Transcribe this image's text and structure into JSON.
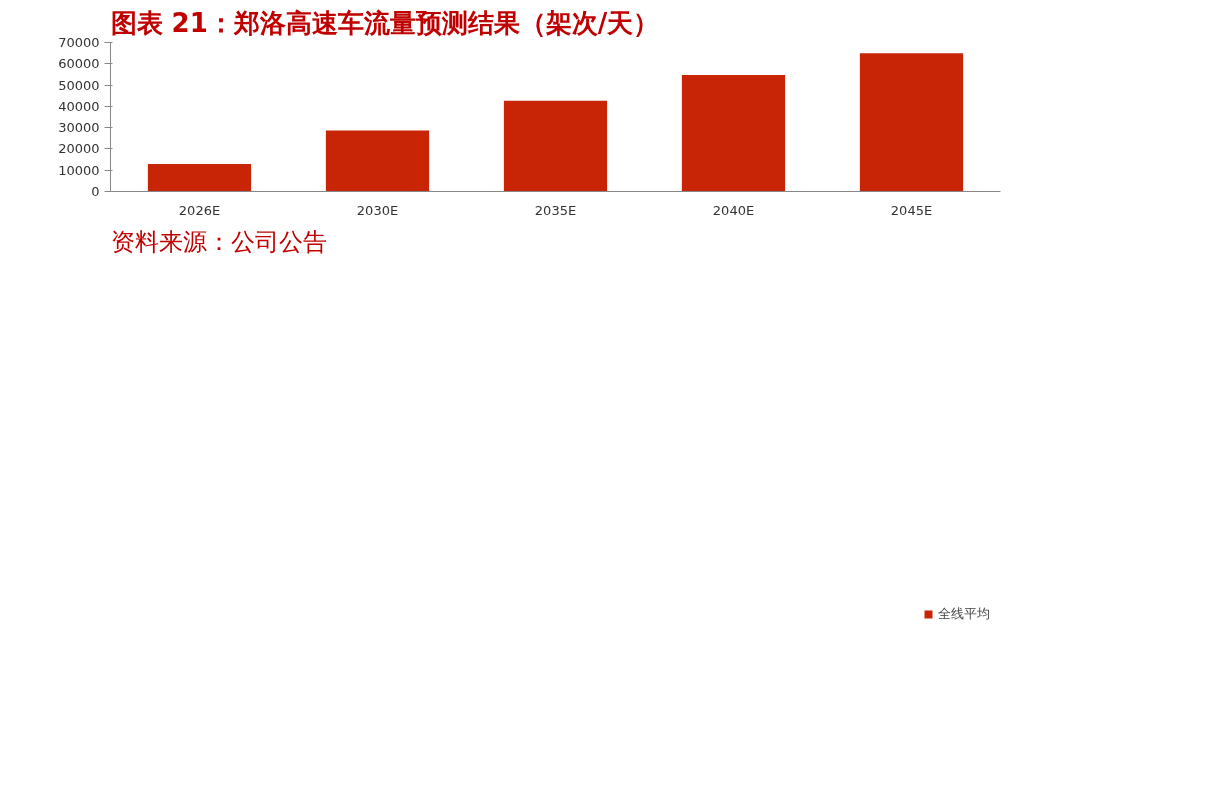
{
  "chart_data": {
    "type": "bar",
    "title": "图表 21：郑洛高速车流量预测结果（架次/天）",
    "categories": [
      "2026E",
      "2030E",
      "2035E",
      "2040E",
      "2045E"
    ],
    "series": [
      {
        "name": "全线平均",
        "color": "#c82506",
        "values": [
          12900,
          28700,
          42600,
          54700,
          64900
        ]
      }
    ],
    "ylim": [
      0,
      70000
    ],
    "yticks": [
      0,
      10000,
      20000,
      30000,
      40000,
      50000,
      60000,
      70000
    ],
    "grid": false,
    "legend": "bottom",
    "annotations": [
      "资料来源：公司公告"
    ]
  }
}
